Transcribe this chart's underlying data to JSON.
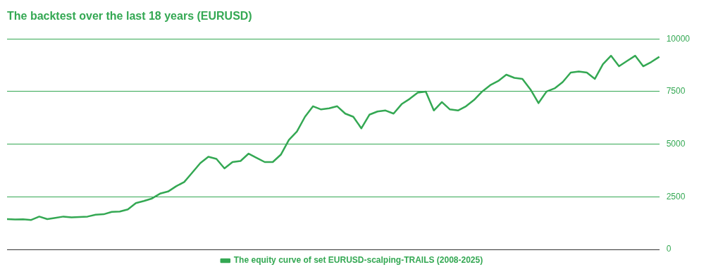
{
  "chart_data": {
    "type": "line",
    "title": "The backtest over the last 18 years (EURUSD)",
    "categories": [
      null,
      null,
      null,
      null,
      null,
      null,
      null,
      null,
      null,
      null,
      null,
      null,
      null,
      null,
      null,
      null,
      null,
      null,
      null,
      null,
      null,
      null,
      null,
      null,
      null,
      null,
      null,
      null,
      null,
      null,
      null,
      null,
      null,
      null,
      null,
      null,
      null,
      null,
      null,
      null,
      null,
      null,
      null,
      null,
      null,
      null,
      null,
      null,
      null,
      null,
      null,
      null,
      null,
      null,
      null,
      null,
      null,
      null,
      null,
      null,
      null,
      null,
      null,
      null,
      null,
      null,
      null,
      null,
      null,
      null,
      null,
      null,
      null,
      null,
      null,
      null,
      null,
      null,
      null,
      null,
      null,
      null
    ],
    "series": [
      {
        "name": "The equity curve of set EURUSD-scalping-TRAILS (2008-2025)",
        "color": "#34a853",
        "values": [
          1440,
          1420,
          1430,
          1400,
          1560,
          1440,
          1500,
          1560,
          1520,
          1540,
          1560,
          1650,
          1670,
          1780,
          1800,
          1900,
          2200,
          2300,
          2420,
          2650,
          2750,
          3000,
          3200,
          3650,
          4100,
          4400,
          4300,
          3850,
          4150,
          4200,
          4550,
          4350,
          4150,
          4150,
          4500,
          5200,
          5600,
          6300,
          6800,
          6650,
          6700,
          6800,
          6450,
          6300,
          5750,
          6400,
          6550,
          6600,
          6450,
          6900,
          7150,
          7450,
          7500,
          6600,
          7000,
          6650,
          6600,
          6800,
          7100,
          7500,
          7800,
          8000,
          8300,
          8150,
          8100,
          7600,
          6950,
          7500,
          7650,
          7950,
          8400,
          8450,
          8400,
          8100,
          8800,
          9200,
          8700,
          8950,
          9200,
          8700,
          8900,
          9150
        ]
      }
    ],
    "ylim": [
      0,
      10000
    ],
    "yticks": [
      0,
      2500,
      5000,
      7500,
      10000
    ],
    "grid": "y",
    "legend": "bottom",
    "marker": "none",
    "line_style": "solid",
    "tick_labels": "y"
  }
}
